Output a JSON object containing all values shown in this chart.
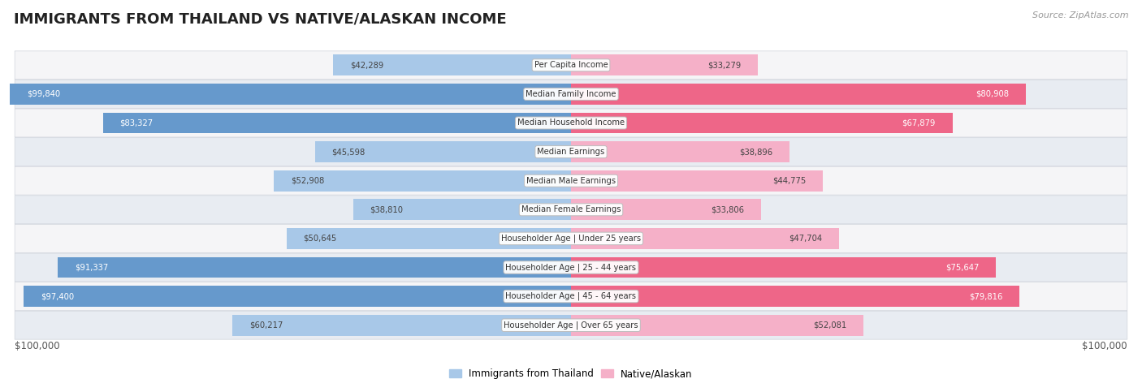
{
  "title": "IMMIGRANTS FROM THAILAND VS NATIVE/ALASKAN INCOME",
  "source": "Source: ZipAtlas.com",
  "categories": [
    "Per Capita Income",
    "Median Family Income",
    "Median Household Income",
    "Median Earnings",
    "Median Male Earnings",
    "Median Female Earnings",
    "Householder Age | Under 25 years",
    "Householder Age | 25 - 44 years",
    "Householder Age | 45 - 64 years",
    "Householder Age | Over 65 years"
  ],
  "thailand_values": [
    42289,
    99840,
    83327,
    45598,
    52908,
    38810,
    50645,
    91337,
    97400,
    60217
  ],
  "native_values": [
    33279,
    80908,
    67879,
    38896,
    44775,
    33806,
    47704,
    75647,
    79816,
    52081
  ],
  "thai_light": "#a8c8e8",
  "thai_dark": "#6699cc",
  "native_light": "#f5b0c8",
  "native_dark": "#ee6688",
  "row_bg_odd": "#f5f5f7",
  "row_bg_even": "#e8ecf2",
  "row_border": "#d0d4dc",
  "max_val": 100000,
  "legend_thailand": "Immigrants from Thailand",
  "legend_native": "Native/Alaskan",
  "thai_threshold": 80000,
  "native_threshold": 65000
}
